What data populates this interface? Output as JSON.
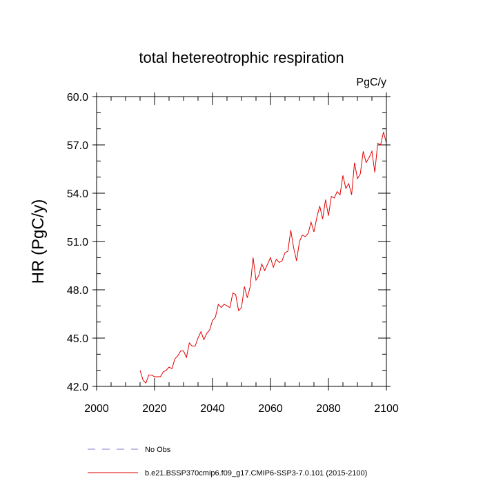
{
  "chart_data": {
    "type": "line",
    "title": "total hetereotrophic respiration",
    "units_label": "PgC/y",
    "ylabel": "HR  (PgC/y)",
    "xlabel": "",
    "xlim": [
      2000,
      2100
    ],
    "ylim": [
      42.0,
      60.0
    ],
    "x_ticks": [
      2000,
      2020,
      2040,
      2060,
      2080,
      2100
    ],
    "x_tick_labels": [
      "2000",
      "2020",
      "2040",
      "2060",
      "2080",
      "2100"
    ],
    "y_ticks": [
      42,
      45,
      48,
      51,
      54,
      57,
      60
    ],
    "y_tick_labels": [
      "42.0",
      "45.0",
      "48.0",
      "51.0",
      "54.0",
      "57.0",
      "60.0"
    ],
    "series": [
      {
        "name": "b.e21.BSSP370cmip6.f09_g17.CMIP6-SSP3-7.0.101 (2015-2100)",
        "color": "#e00000",
        "style": "solid",
        "x": [
          2015,
          2016,
          2017,
          2018,
          2019,
          2020,
          2021,
          2022,
          2023,
          2024,
          2025,
          2026,
          2027,
          2028,
          2029,
          2030,
          2031,
          2032,
          2033,
          2034,
          2035,
          2036,
          2037,
          2038,
          2039,
          2040,
          2041,
          2042,
          2043,
          2044,
          2045,
          2046,
          2047,
          2048,
          2049,
          2050,
          2051,
          2052,
          2053,
          2054,
          2055,
          2056,
          2057,
          2058,
          2059,
          2060,
          2061,
          2062,
          2063,
          2064,
          2065,
          2066,
          2067,
          2068,
          2069,
          2070,
          2071,
          2072,
          2073,
          2074,
          2075,
          2076,
          2077,
          2078,
          2079,
          2080,
          2081,
          2082,
          2083,
          2084,
          2085,
          2086,
          2087,
          2088,
          2089,
          2090,
          2091,
          2092,
          2093,
          2094,
          2095,
          2096,
          2097,
          2098,
          2099,
          2100
        ],
        "values": [
          43.0,
          42.4,
          42.2,
          42.7,
          42.7,
          42.6,
          42.6,
          42.6,
          42.9,
          43.0,
          43.2,
          43.1,
          43.7,
          43.9,
          44.2,
          44.2,
          43.8,
          44.7,
          44.5,
          44.5,
          45.0,
          45.4,
          44.9,
          45.3,
          45.5,
          46.1,
          46.3,
          47.1,
          46.9,
          47.1,
          47.0,
          46.9,
          47.8,
          47.7,
          46.7,
          46.9,
          48.2,
          47.5,
          48.2,
          50.0,
          48.6,
          48.9,
          49.6,
          49.2,
          49.6,
          50.0,
          49.4,
          49.9,
          49.7,
          49.8,
          50.3,
          50.4,
          51.7,
          50.6,
          49.8,
          51.0,
          51.4,
          51.3,
          51.5,
          52.2,
          51.6,
          52.5,
          53.2,
          52.4,
          53.6,
          52.6,
          53.8,
          53.7,
          54.1,
          53.9,
          55.1,
          54.3,
          54.6,
          53.9,
          55.9,
          54.9,
          55.2,
          56.6,
          55.9,
          56.2,
          56.6,
          55.3,
          57.1,
          57.0,
          57.8,
          57.1
        ]
      }
    ],
    "legend": [
      {
        "label": "No Obs",
        "color": "#7b7bd6",
        "style": "dashed"
      },
      {
        "label": "b.e21.BSSP370cmip6.f09_g17.CMIP6-SSP3-7.0.101 (2015-2100)",
        "color": "#e00000",
        "style": "solid"
      }
    ]
  }
}
